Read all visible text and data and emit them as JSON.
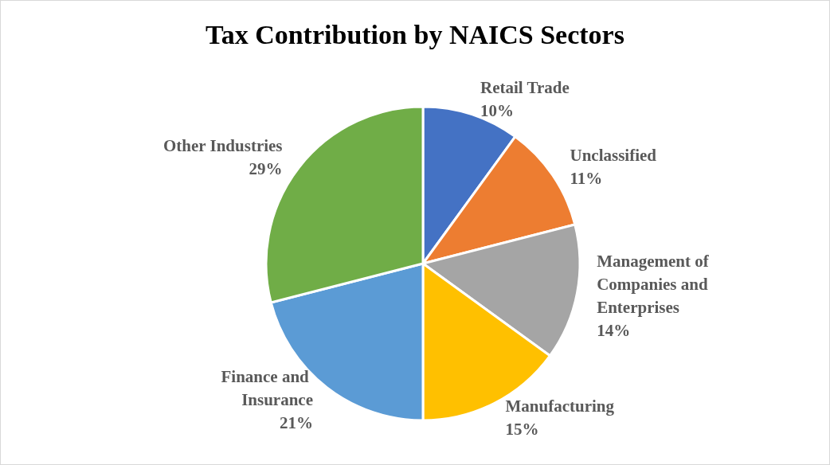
{
  "chart_data": {
    "type": "pie",
    "title": "Tax Contribution by NAICS Sectors",
    "categories": [
      "Retail Trade",
      "Unclassified",
      "Management of Companies and Enterprises",
      "Manufacturing",
      "Finance and Insurance",
      "Other Industries"
    ],
    "values": [
      10,
      11,
      14,
      15,
      21,
      29
    ],
    "colors": [
      "#4472c4",
      "#ed7d31",
      "#a5a5a5",
      "#ffc000",
      "#5b9bd5",
      "#70ad47"
    ],
    "value_labels": [
      "10%",
      "11%",
      "14%",
      "15%",
      "21%",
      "29%"
    ],
    "legend": false
  }
}
